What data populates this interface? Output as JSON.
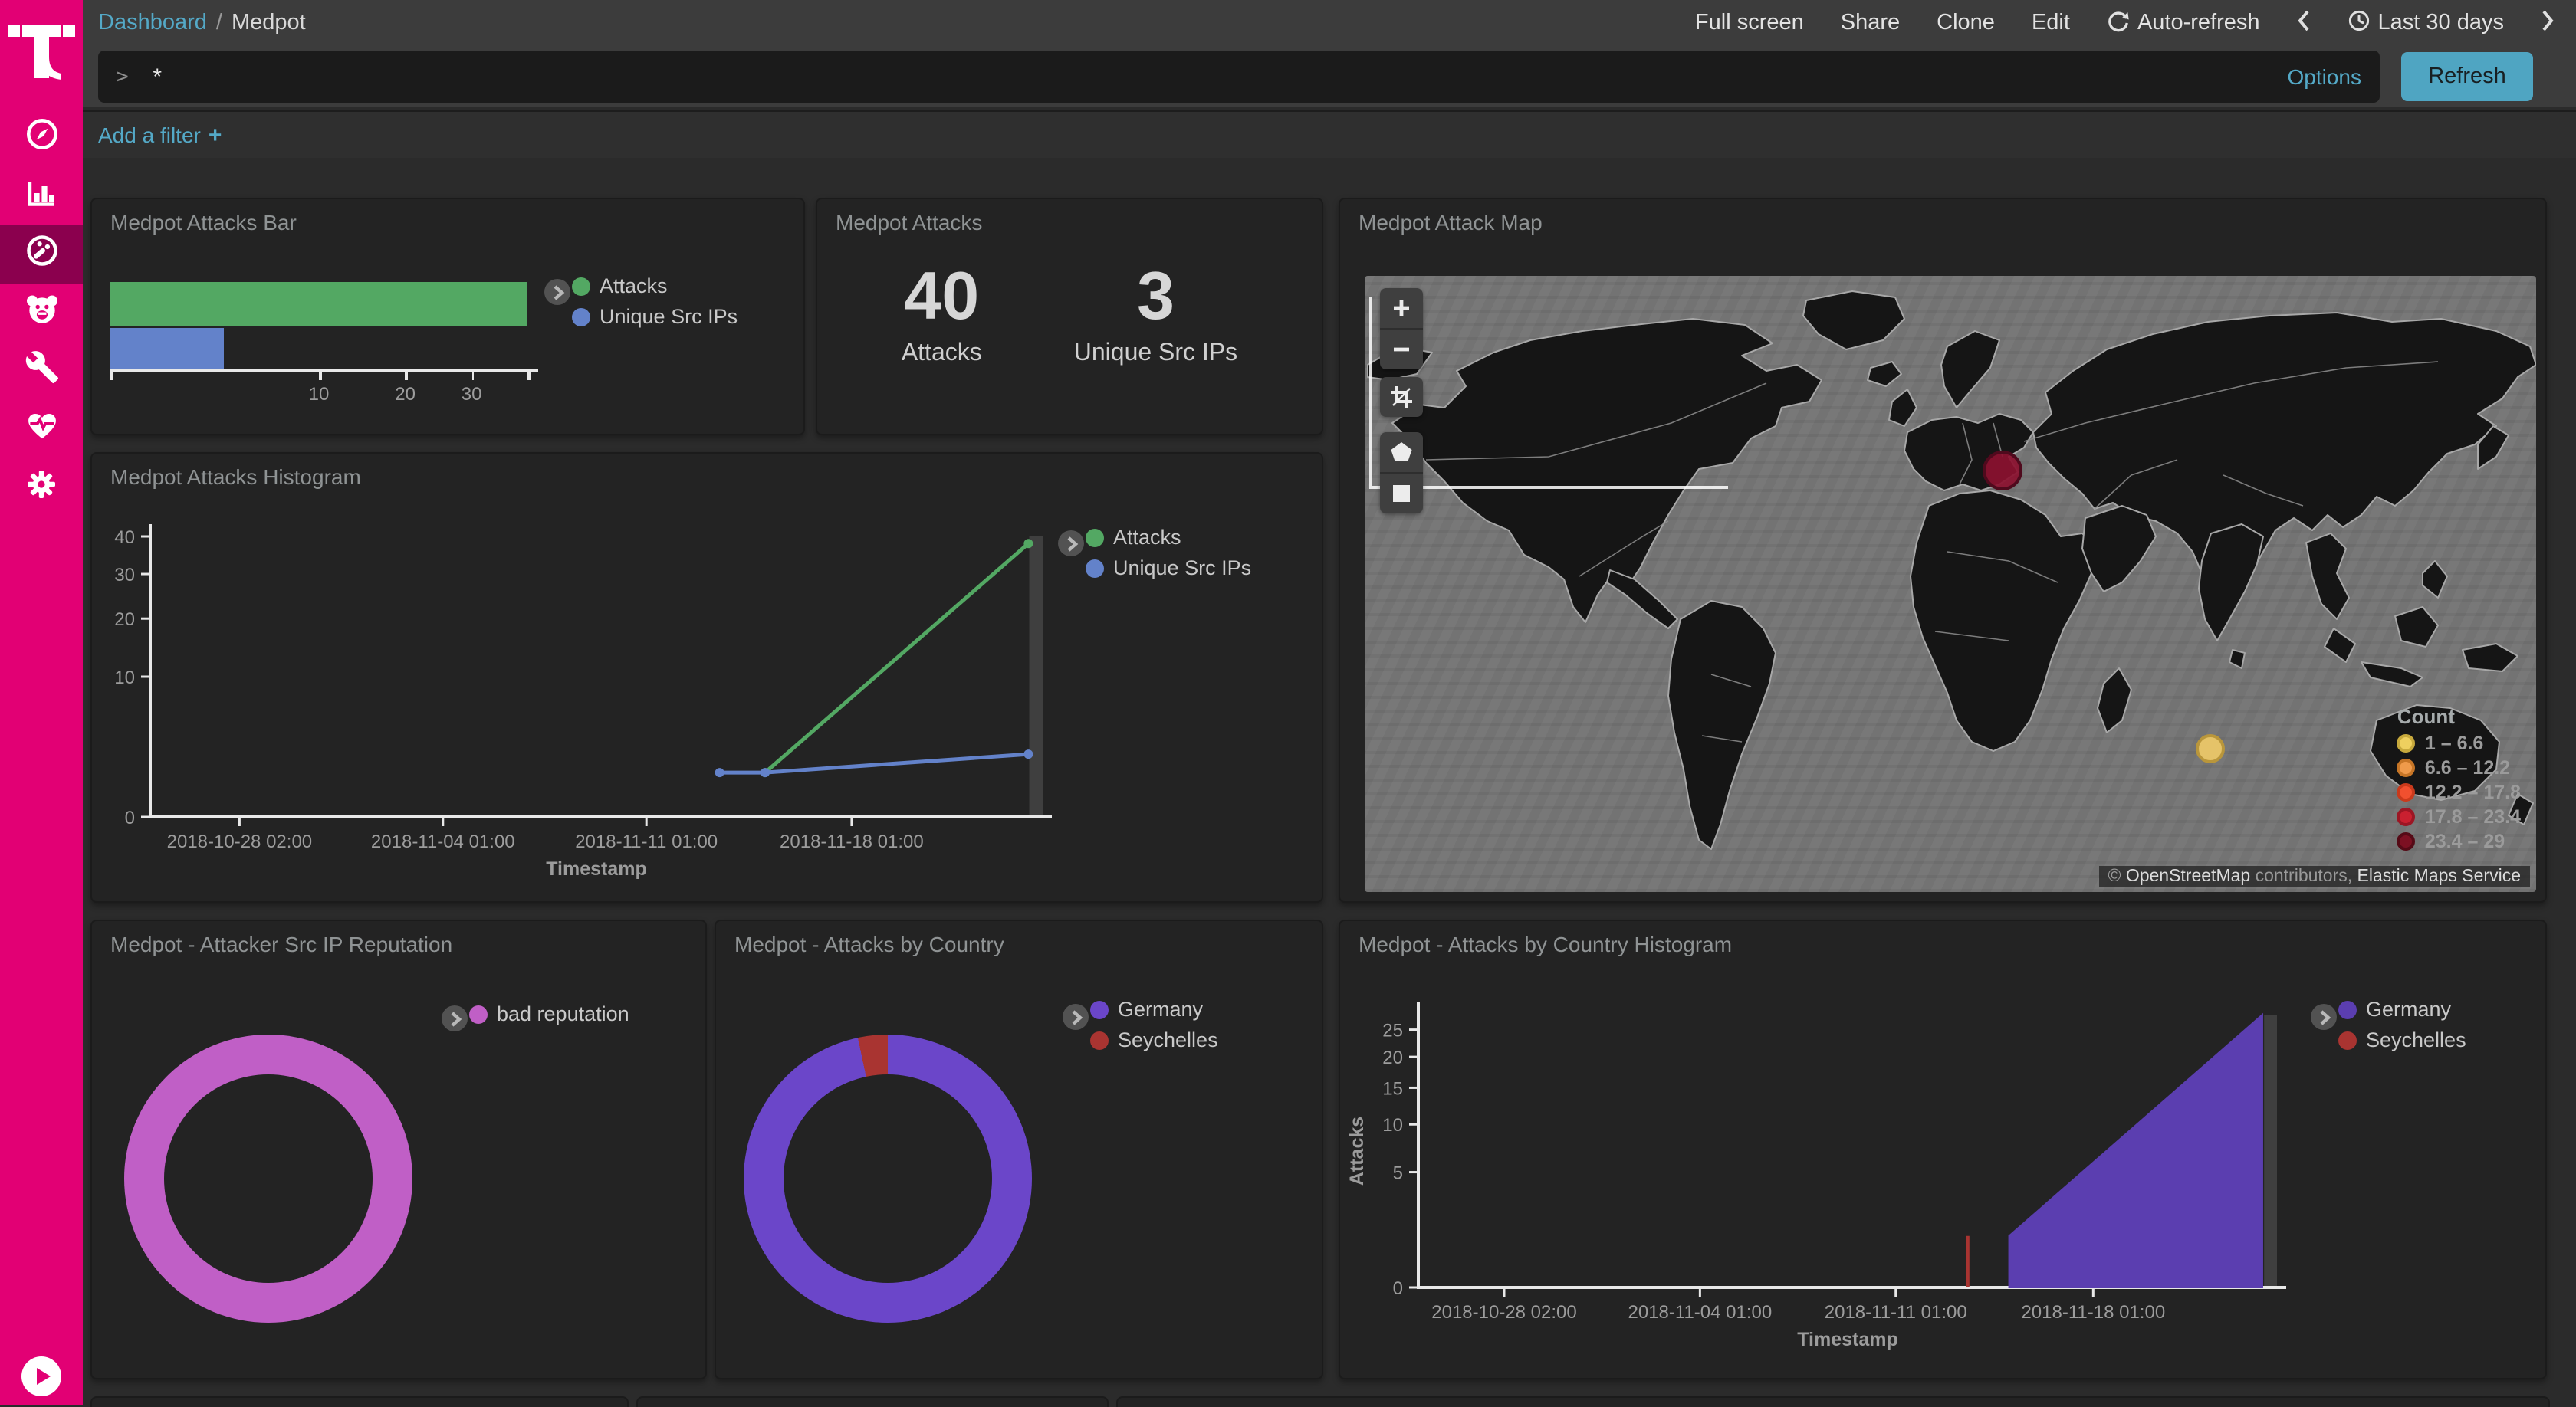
{
  "colors": {
    "magenta": "#e20074",
    "sidebar_selected": "#8b004e",
    "teal": "#54a9c7",
    "refresh_button": "#4fa5c2",
    "panel_bg": "#232323",
    "page_bg": "#2b2b2b"
  },
  "sidebar": {
    "logo": "telekom-t-logo",
    "items": [
      {
        "id": "discover",
        "icon": "compass-icon",
        "selected": false
      },
      {
        "id": "visualize",
        "icon": "bar-chart-icon",
        "selected": false
      },
      {
        "id": "dashboard",
        "icon": "gauge-icon",
        "selected": true
      },
      {
        "id": "bear",
        "icon": "bear-icon",
        "selected": false
      },
      {
        "id": "dev-tools",
        "icon": "wrench-icon",
        "selected": false
      },
      {
        "id": "monitoring",
        "icon": "heartbeat-icon",
        "selected": false
      },
      {
        "id": "management",
        "icon": "gear-icon",
        "selected": false
      }
    ],
    "expand": {
      "icon": "play-icon"
    }
  },
  "topnav": {
    "breadcrumb": {
      "root": "Dashboard",
      "separator": "/",
      "current": "Medpot"
    },
    "actions": [
      "Full screen",
      "Share",
      "Clone",
      "Edit"
    ],
    "auto_refresh": "Auto-refresh",
    "time_range": "Last 30 days"
  },
  "querybar": {
    "prompt": ">_",
    "value": "*",
    "options_label": "Options",
    "refresh_label": "Refresh"
  },
  "filterbar": {
    "label": "Add a filter",
    "plus": "+"
  },
  "panels": {
    "attacks_bar": {
      "title": "Medpot Attacks Bar",
      "chart": {
        "type": "bar",
        "orientation": "horizontal",
        "scale": "sqrt",
        "xmax": 40,
        "xticks": [
          10,
          20,
          30
        ],
        "series": [
          {
            "name": "Attacks",
            "color": "#53a863",
            "value": 40
          },
          {
            "name": "Unique Src IPs",
            "color": "#6382ca",
            "value": 3
          }
        ]
      }
    },
    "attacks_metric": {
      "title": "Medpot Attacks",
      "metrics": [
        {
          "value": "40",
          "label": "Attacks"
        },
        {
          "value": "3",
          "label": "Unique Src IPs"
        }
      ]
    },
    "attack_map": {
      "title": "Medpot Attack Map",
      "controls": [
        "zoom-in",
        "zoom-out",
        "crop",
        "draw-polygon",
        "draw-rectangle"
      ],
      "legend": {
        "title": "Count",
        "ranges": [
          {
            "label": "1 – 6.6",
            "color": "#eed05f",
            "border": "#c7a93c"
          },
          {
            "label": "6.6 – 12.2",
            "color": "#ef9a4b",
            "border": "#c67526"
          },
          {
            "label": "12.2 – 17.8",
            "color": "#f1502f",
            "border": "#c93a1c"
          },
          {
            "label": "17.8 – 23.4",
            "color": "#ca2030",
            "border": "#9c1624"
          },
          {
            "label": "23.4 – 29",
            "color": "#7c1022",
            "border": "#550a16"
          }
        ]
      },
      "points": [
        {
          "id": "germany-cluster",
          "bucket": "23.4 – 29",
          "color": "rgba(140,17,48,0.92)",
          "border": "#4f0a1d",
          "x": 0.545,
          "y": 0.316,
          "r": 13
        },
        {
          "id": "indian-ocean-cluster",
          "bucket": "1 – 6.6",
          "color": "#e5c369",
          "border": "#b9963b",
          "x": 0.722,
          "y": 0.767,
          "r": 9.5
        }
      ],
      "attribution": {
        "copyright": "© ",
        "osm": "OpenStreetMap",
        "contributors": " contributors, ",
        "ems": "Elastic Maps Service"
      }
    },
    "attacks_histogram": {
      "title": "Medpot Attacks Histogram",
      "chart": {
        "type": "line",
        "scale": "sqrt",
        "ymax": 40,
        "yticks": [
          0,
          10,
          20,
          30,
          40
        ],
        "xlabel": "Timestamp",
        "xticks": [
          {
            "label": "2018-10-28 02:00",
            "f": 0.1
          },
          {
            "label": "2018-11-04 01:00",
            "f": 0.328
          },
          {
            "label": "2018-11-11 01:00",
            "f": 0.556
          },
          {
            "label": "2018-11-18 01:00",
            "f": 0.786
          }
        ],
        "series": [
          {
            "name": "Attacks",
            "color": "#53a863",
            "points": [
              {
                "f": 0.689,
                "v": 1
              },
              {
                "f": 0.984,
                "v": 38
              }
            ]
          },
          {
            "name": "Unique Src IPs",
            "color": "#6382ca",
            "points": [
              {
                "f": 0.638,
                "v": 1
              },
              {
                "f": 0.689,
                "v": 1
              },
              {
                "f": 0.984,
                "v": 2
              }
            ]
          }
        ]
      }
    },
    "src_ip_reputation": {
      "title": "Medpot - Attacker Src IP Reputation",
      "chart": {
        "type": "pie",
        "donut": true,
        "slices": [
          {
            "label": "bad reputation",
            "color": "#c05fc6",
            "value": 1
          }
        ]
      }
    },
    "attacks_by_country": {
      "title": "Medpot - Attacks by Country",
      "chart": {
        "type": "pie",
        "donut": true,
        "slices": [
          {
            "label": "Germany",
            "color": "#6b46c9",
            "value": 29
          },
          {
            "label": "Seychelles",
            "color": "#a93431",
            "value": 1
          }
        ]
      }
    },
    "attacks_by_country_histogram": {
      "title": "Medpot - Attacks by Country Histogram",
      "chart": {
        "type": "area",
        "scale": "sqrt",
        "ymax": 28,
        "yticks": [
          0,
          5,
          10,
          15,
          20,
          25
        ],
        "ylabel": "Attacks",
        "xlabel": "Timestamp",
        "xticks": [
          {
            "label": "2018-10-28 02:00",
            "f": 0.1
          },
          {
            "label": "2018-11-04 01:00",
            "f": 0.328
          },
          {
            "label": "2018-11-11 01:00",
            "f": 0.556
          },
          {
            "label": "2018-11-18 01:00",
            "f": 0.786
          }
        ],
        "series": [
          {
            "name": "Germany",
            "color": "#5b3eb0",
            "points": [
              {
                "f": 0.688,
                "v": 1
              },
              {
                "f": 0.983,
                "v": 28
              }
            ]
          },
          {
            "name": "Seychelles",
            "color": "#a93431",
            "style": "spike",
            "points": [
              {
                "f": 0.64,
                "v": 1
              }
            ]
          }
        ]
      }
    }
  }
}
